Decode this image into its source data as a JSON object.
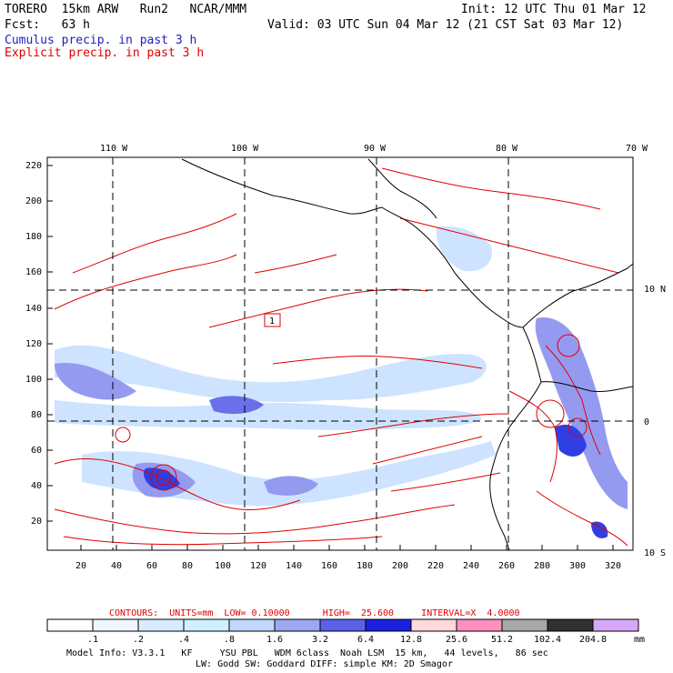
{
  "header": {
    "model": "TORERO  15km ARW   Run2   NCAR/MMM",
    "init": "Init: 12 UTC Thu 01 Mar 12",
    "fcst": "Fcst:   63 h",
    "valid": "Valid: 03 UTC Sun 04 Mar 12 (21 CST Sat 03 Mar 12)",
    "cumulus": "Cumulus precip. in past 3 h",
    "explicit": "Explicit precip. in past 3 h"
  },
  "map": {
    "lon_labels": [
      "110 W",
      "100 W",
      "90 W",
      "80 W",
      "70 W"
    ],
    "lat_labels": [
      "10 N",
      "0",
      "10 S"
    ],
    "y_ticks": [
      "220",
      "200",
      "180",
      "160",
      "140",
      "120",
      "100",
      "80",
      "60",
      "40",
      "20"
    ],
    "x_ticks": [
      "20",
      "40",
      "60",
      "80",
      "100",
      "120",
      "140",
      "160",
      "180",
      "200",
      "220",
      "240",
      "260",
      "280",
      "300",
      "320"
    ],
    "box_label": "1",
    "colors": {
      "cumulus_light": "#c8e0ff",
      "cumulus_mid": "#8a90f0",
      "cumulus_dark": "#1a2ae0",
      "contour": "#e00000",
      "coast": "#000000"
    }
  },
  "colorbar": {
    "contours_text": "CONTOURS:  UNITS=mm  LOW= 0.10000      HIGH=  25.600     INTERVAL=X  4.0000",
    "labels": [
      ".1",
      ".2",
      ".4",
      ".8",
      "1.6",
      "3.2",
      "6.4",
      "12.8",
      "25.6",
      "51.2",
      "102.4",
      "204.8"
    ],
    "unit": "mm",
    "colors": [
      "#ffffff",
      "#f0f6ff",
      "#d8ecff",
      "#d0f0ff",
      "#c0d8ff",
      "#9ca8f0",
      "#5a60e8",
      "#1a20e0",
      "#ffd8dc",
      "#ff90c0",
      "#a8a8a8",
      "#303030",
      "#d8a8f8"
    ]
  },
  "footer": {
    "line1": "Model Info: V3.3.1   KF     YSU PBL   WDM 6class  Noah LSM  15 km,   44 levels,   86 sec",
    "line2": "LW: Godd SW: Goddard DIFF: simple KM: 2D Smagor"
  }
}
